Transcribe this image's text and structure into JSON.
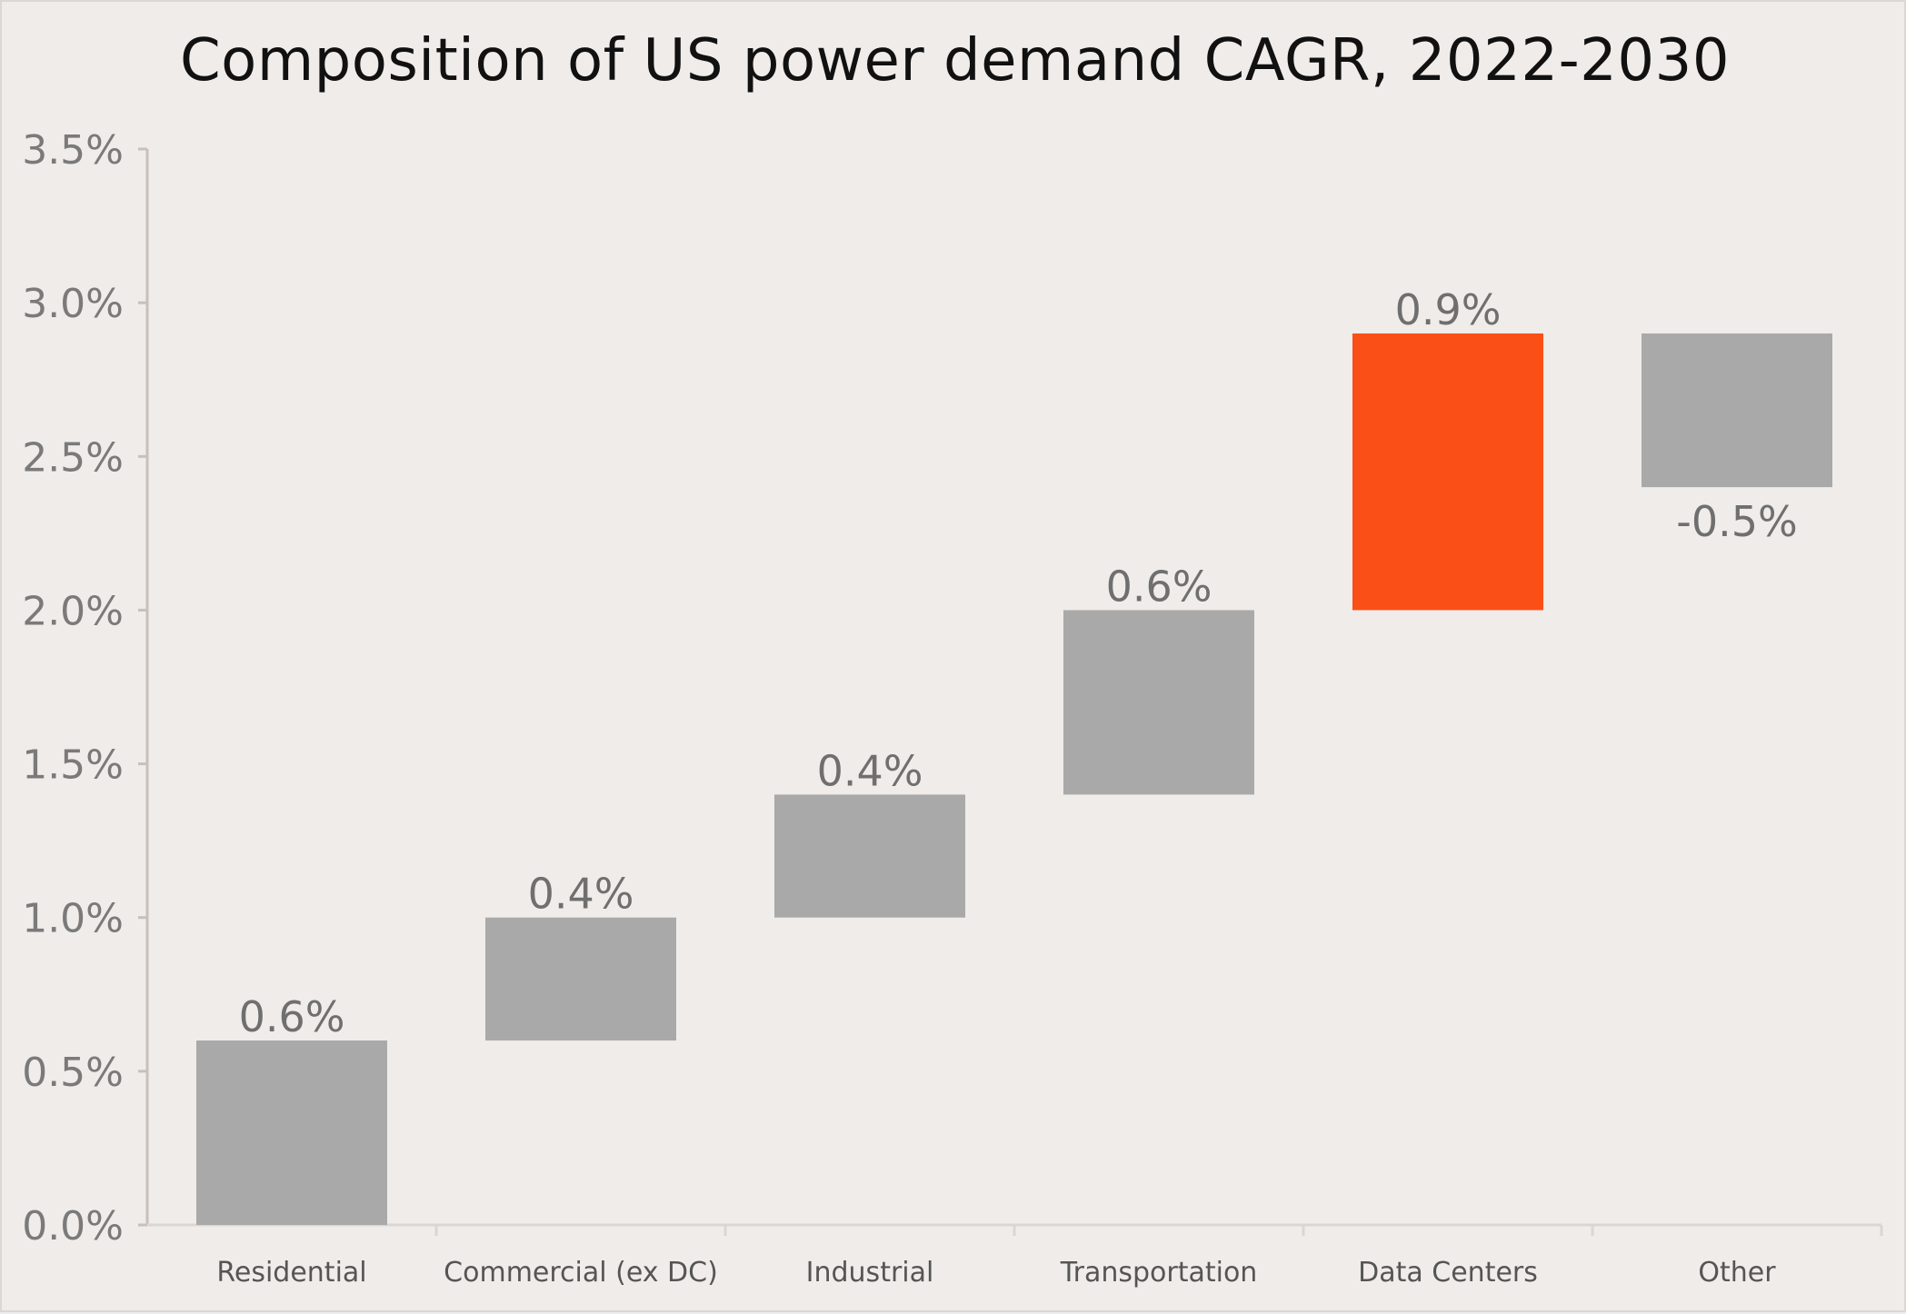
{
  "chart_data": {
    "type": "bar",
    "subtype": "waterfall",
    "title": "Composition of US power demand CAGR, 2022-2030",
    "xlabel": "",
    "ylabel": "",
    "categories": [
      "Residential",
      "Commercial (ex DC)",
      "Industrial",
      "Transportation",
      "Data Centers",
      "Other"
    ],
    "values": [
      0.6,
      0.4,
      0.4,
      0.6,
      0.9,
      -0.5
    ],
    "value_labels": [
      "0.6%",
      "0.4%",
      "0.4%",
      "0.6%",
      "0.9%",
      "-0.5%"
    ],
    "bar_ranges": [
      [
        0.0,
        0.6
      ],
      [
        0.6,
        1.0
      ],
      [
        1.0,
        1.4
      ],
      [
        1.4,
        2.0
      ],
      [
        2.0,
        2.9
      ],
      [
        2.4,
        2.9
      ]
    ],
    "highlight_category": "Data Centers",
    "ylim": [
      0.0,
      3.5
    ],
    "y_ticks": [
      0.0,
      0.5,
      1.0,
      1.5,
      2.0,
      2.5,
      3.0,
      3.5
    ],
    "y_tick_labels": [
      "0.0%",
      "0.5%",
      "1.0%",
      "1.5%",
      "2.0%",
      "2.5%",
      "3.0%",
      "3.5%"
    ],
    "grid": false,
    "legend": "none",
    "colors": {
      "bar": "#a9a9a9",
      "highlight": "#fa4f17",
      "axis": "#c9bfbb",
      "background": "#f0ece9"
    }
  }
}
